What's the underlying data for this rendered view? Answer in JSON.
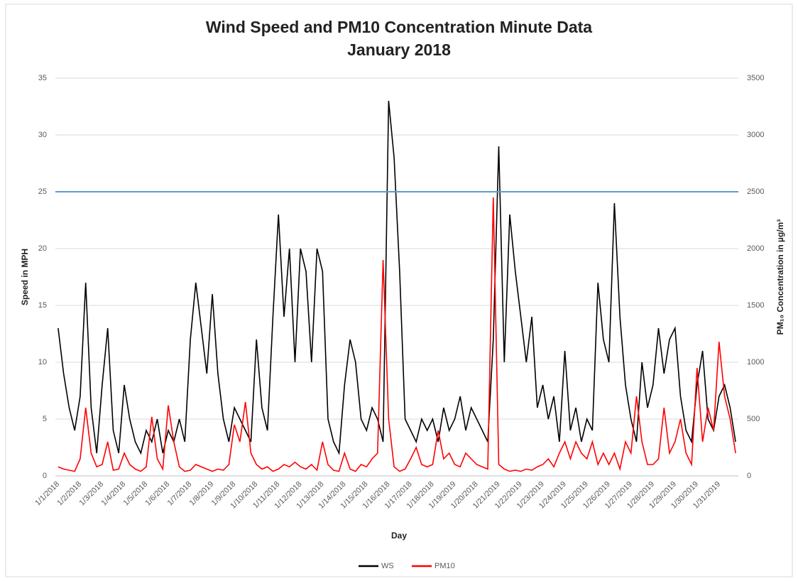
{
  "chart_data": {
    "type": "line",
    "title": "Wind Speed and PM10 Concentration Minute Data",
    "subtitle": "January 2018",
    "x_label": "Day",
    "y_label": "Speed in MPH",
    "y2_label": "PM₁₀ Concentration in µg/m³",
    "categories": [
      "1/1/2018",
      "1/2/2018",
      "1/3/2018",
      "1/4/2018",
      "1/5/2018",
      "1/6/2018",
      "1/7/2018",
      "1/8/2019",
      "1/9/2018",
      "1/10/2018",
      "1/11/2018",
      "1/12/2018",
      "1/13/2018",
      "1/14/2018",
      "1/15/2018",
      "1/16/2018",
      "1/17/2018",
      "1/18/2018",
      "1/19/2019",
      "1/20/2018",
      "1/21/2019",
      "1/22/2019",
      "1/23/2019",
      "1/24/2019",
      "1/25/2019",
      "1/26/2019",
      "1/27/2019",
      "1/28/2019",
      "1/29/2019",
      "1/30/2019",
      "1/31/2019"
    ],
    "ylim": [
      0,
      35
    ],
    "yticks": [
      0,
      5,
      10,
      15,
      20,
      25,
      30,
      35
    ],
    "y2lim": [
      0,
      3500
    ],
    "y2ticks": [
      0,
      500,
      1000,
      1500,
      2000,
      2500,
      3000,
      3500
    ],
    "grid": true,
    "legend": "bottom",
    "reference_line": {
      "value": 25,
      "color": "#5b9bd5"
    },
    "series": [
      {
        "name": "WS",
        "color": "#000000",
        "values": [
          [
            13,
            9,
            6,
            4
          ],
          [
            7,
            17,
            6,
            2
          ],
          [
            8,
            13,
            4,
            2
          ],
          [
            8,
            5,
            3,
            2
          ],
          [
            4,
            3,
            5,
            2
          ],
          [
            4,
            3,
            5,
            3
          ],
          [
            12,
            17,
            13,
            9
          ],
          [
            16,
            9,
            5,
            3
          ],
          [
            6,
            5,
            4,
            3
          ],
          [
            12,
            6,
            4,
            14
          ],
          [
            23,
            14,
            20,
            10
          ],
          [
            20,
            18,
            10,
            20
          ],
          [
            18,
            5,
            3,
            2
          ],
          [
            8,
            12,
            10,
            5
          ],
          [
            4,
            6,
            5,
            3
          ],
          [
            33,
            28,
            18,
            5
          ],
          [
            4,
            3,
            5,
            4
          ],
          [
            5,
            3,
            6,
            4
          ],
          [
            5,
            7,
            4,
            6
          ],
          [
            5,
            4,
            3,
            12
          ],
          [
            29,
            10,
            23,
            18
          ],
          [
            14,
            10,
            14,
            6
          ],
          [
            8,
            5,
            7,
            3
          ],
          [
            11,
            4,
            6,
            3
          ],
          [
            5,
            4,
            17,
            12
          ],
          [
            10,
            24,
            14,
            8
          ],
          [
            5,
            3,
            10,
            6
          ],
          [
            8,
            13,
            9,
            12
          ],
          [
            13,
            7,
            4,
            3
          ],
          [
            8,
            11,
            5,
            4
          ],
          [
            7,
            8,
            6,
            3
          ]
        ]
      },
      {
        "name": "PM10",
        "color": "#ff0000",
        "axis": "y2",
        "values": [
          [
            80,
            60,
            50,
            40
          ],
          [
            150,
            600,
            200,
            80
          ],
          [
            100,
            300,
            50,
            60
          ],
          [
            200,
            100,
            60,
            40
          ],
          [
            80,
            520,
            150,
            60
          ],
          [
            620,
            300,
            80,
            40
          ],
          [
            50,
            100,
            80,
            60
          ],
          [
            40,
            60,
            50,
            100
          ],
          [
            450,
            300,
            650,
            200
          ],
          [
            100,
            60,
            80,
            40
          ],
          [
            60,
            100,
            80,
            120
          ],
          [
            80,
            60,
            100,
            50
          ],
          [
            300,
            100,
            50,
            40
          ],
          [
            200,
            60,
            40,
            100
          ],
          [
            80,
            150,
            200,
            1900
          ],
          [
            500,
            80,
            40,
            60
          ],
          [
            150,
            250,
            100,
            80
          ],
          [
            100,
            400,
            150,
            200
          ],
          [
            100,
            80,
            200,
            150
          ],
          [
            100,
            80,
            60,
            2450
          ],
          [
            100,
            60,
            40,
            50
          ],
          [
            40,
            60,
            50,
            80
          ],
          [
            100,
            150,
            80,
            200
          ],
          [
            300,
            150,
            300,
            200
          ],
          [
            150,
            300,
            100,
            200
          ],
          [
            100,
            200,
            60,
            300
          ],
          [
            200,
            700,
            300,
            100
          ],
          [
            100,
            150,
            600,
            200
          ],
          [
            300,
            500,
            200,
            100
          ],
          [
            950,
            300,
            600,
            400
          ],
          [
            1180,
            700,
            500,
            200
          ]
        ]
      }
    ]
  }
}
